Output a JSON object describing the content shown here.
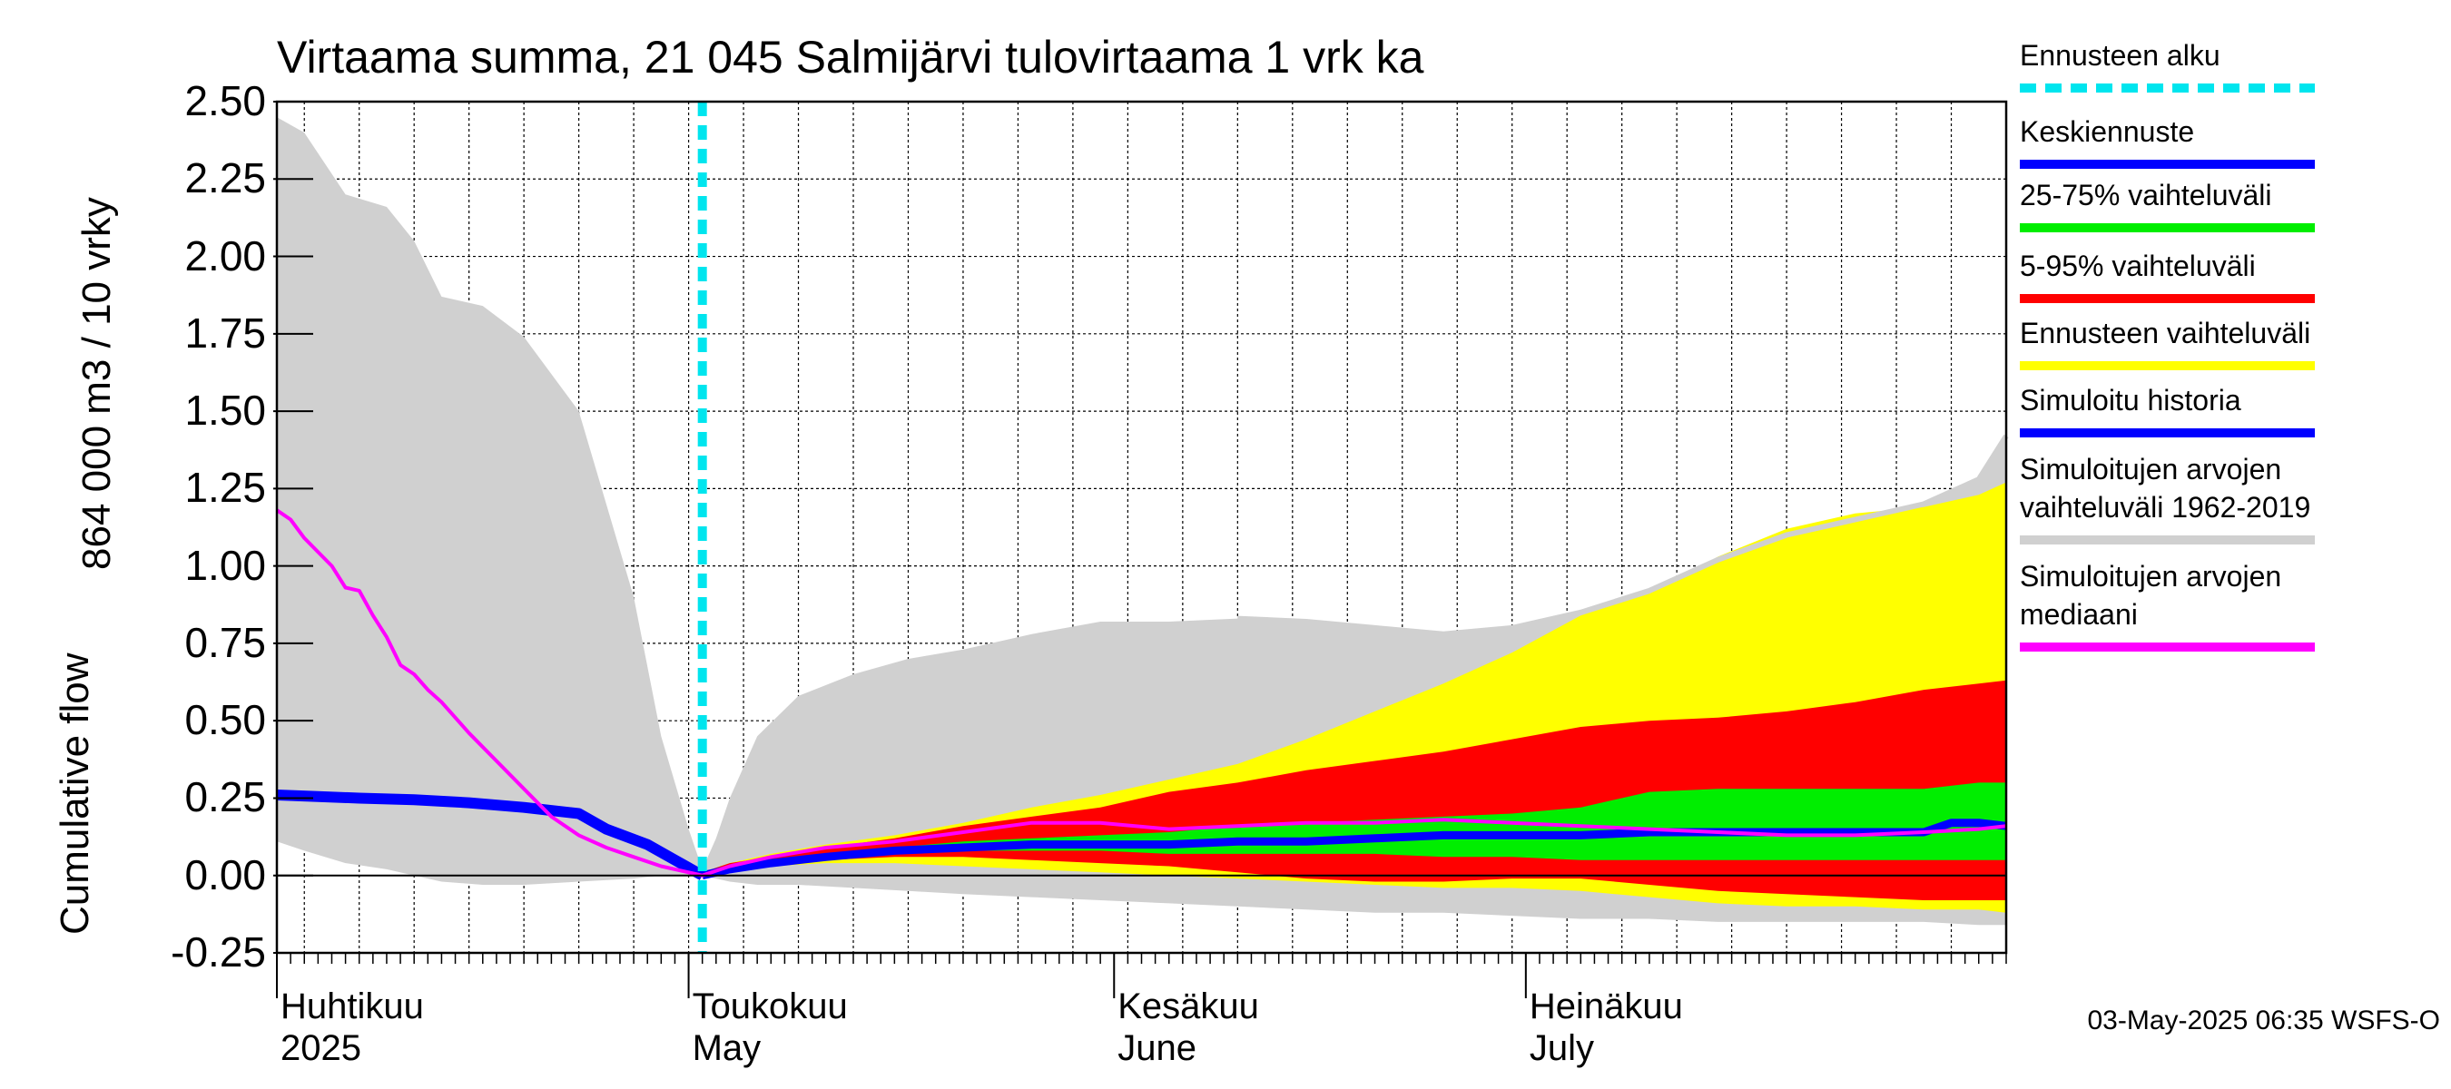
{
  "chart_data": {
    "type": "area",
    "title": "Virtaama summa, 21 045 Salmijärvi tulovirtaama 1 vrk ka",
    "ylabel_top": "864 000 m3 / 10 vrky",
    "ylabel_bottom": "Cumulative flow",
    "ylim": [
      -0.25,
      2.5
    ],
    "yticks": [
      "-0.25",
      "0.00",
      "0.25",
      "0.50",
      "0.75",
      "1.00",
      "1.25",
      "1.50",
      "1.75",
      "2.00",
      "2.25",
      "2.50"
    ],
    "ytick_values": [
      -0.25,
      0,
      0.25,
      0.5,
      0.75,
      1,
      1.25,
      1.5,
      1.75,
      2,
      2.25,
      2.5
    ],
    "x_range_days": [
      0,
      126
    ],
    "forecast_start_day": 31,
    "months": [
      {
        "fi": "Huhtikuu",
        "en": "2025",
        "day": 0
      },
      {
        "fi": "Toukokuu",
        "en": "May",
        "day": 30
      },
      {
        "fi": "Kesäkuu",
        "en": "June",
        "day": 61
      },
      {
        "fi": "Heinäkuu",
        "en": "July",
        "day": 91
      }
    ],
    "footer": "03-May-2025 06:35 WSFS-O",
    "legend": [
      {
        "label": "Ennusteen alku",
        "color": "#00e5ee",
        "style": "dashed"
      },
      {
        "label": "Keskiennuste",
        "color": "#0000ff",
        "style": "solid"
      },
      {
        "label": "25-75% vaihteluväli",
        "color": "#00ee00",
        "style": "solid"
      },
      {
        "label": "5-95% vaihteluväli",
        "color": "#ff0000",
        "style": "solid"
      },
      {
        "label": "Ennusteen vaihteluväli",
        "color": "#ffff00",
        "style": "solid"
      },
      {
        "label": "Simuloitu historia",
        "color": "#0000ff",
        "style": "solid"
      },
      {
        "label": "Simuloitujen arvojen\nvaihteluväli 1962-2019",
        "color": "#d0d0d0",
        "style": "solid"
      },
      {
        "label": "Simuloitujen arvojen\nmediaani",
        "color": "#ff00ff",
        "style": "solid"
      }
    ],
    "series": {
      "hist_range": {
        "day": [
          0,
          2,
          5,
          8,
          10,
          12,
          15,
          18,
          22,
          26,
          28,
          30,
          31,
          32,
          33,
          35,
          38,
          42,
          46,
          50,
          55,
          60,
          65,
          70,
          75,
          80,
          85,
          90,
          95,
          100,
          105,
          110,
          115,
          120,
          124,
          126
        ],
        "upper": [
          2.45,
          2.4,
          2.2,
          2.16,
          2.05,
          1.87,
          1.84,
          1.74,
          1.5,
          0.9,
          0.45,
          0.15,
          0.02,
          0.12,
          0.25,
          0.45,
          0.58,
          0.65,
          0.7,
          0.73,
          0.78,
          0.82,
          0.82,
          0.83,
          0.82,
          0.8,
          0.78,
          0.8,
          0.85,
          0.92,
          1.02,
          1.1,
          1.15,
          1.2,
          1.28,
          1.42
        ],
        "lower": [
          0.11,
          0.08,
          0.04,
          0.02,
          0.0,
          -0.02,
          -0.03,
          -0.03,
          -0.02,
          -0.01,
          0.0,
          0.0,
          0.0,
          -0.01,
          -0.02,
          -0.03,
          -0.03,
          -0.04,
          -0.05,
          -0.06,
          -0.07,
          -0.08,
          -0.09,
          -0.1,
          -0.11,
          -0.12,
          -0.12,
          -0.13,
          -0.14,
          -0.14,
          -0.15,
          -0.15,
          -0.15,
          -0.15,
          -0.16,
          -0.16
        ]
      },
      "forecast_range": {
        "day": [
          31,
          33,
          36,
          40,
          45,
          50,
          55,
          60,
          65,
          70,
          75,
          80,
          85,
          90,
          95,
          100,
          105,
          110,
          115,
          120,
          124,
          126
        ],
        "upper": [
          0.01,
          0.04,
          0.07,
          0.1,
          0.13,
          0.17,
          0.22,
          0.26,
          0.31,
          0.36,
          0.44,
          0.53,
          0.62,
          0.72,
          0.84,
          0.91,
          1.03,
          1.12,
          1.17,
          1.19,
          1.23,
          1.27
        ],
        "lower": [
          0.0,
          0.02,
          0.03,
          0.04,
          0.04,
          0.03,
          0.02,
          0.01,
          0.0,
          -0.01,
          -0.02,
          -0.03,
          -0.04,
          -0.04,
          -0.05,
          -0.07,
          -0.09,
          -0.1,
          -0.1,
          -0.11,
          -0.11,
          -0.12
        ]
      },
      "p5_95": {
        "day": [
          31,
          33,
          36,
          40,
          45,
          50,
          55,
          60,
          65,
          70,
          75,
          80,
          85,
          90,
          95,
          100,
          105,
          110,
          115,
          120,
          124,
          126
        ],
        "upper": [
          0.01,
          0.04,
          0.06,
          0.09,
          0.12,
          0.16,
          0.19,
          0.22,
          0.27,
          0.3,
          0.34,
          0.37,
          0.4,
          0.44,
          0.48,
          0.5,
          0.51,
          0.53,
          0.56,
          0.6,
          0.62,
          0.63
        ],
        "lower": [
          0.0,
          0.02,
          0.03,
          0.05,
          0.06,
          0.06,
          0.05,
          0.04,
          0.03,
          0.01,
          -0.01,
          -0.02,
          -0.02,
          -0.01,
          -0.01,
          -0.03,
          -0.05,
          -0.06,
          -0.07,
          -0.08,
          -0.08,
          -0.08
        ]
      },
      "p25_75": {
        "day": [
          31,
          33,
          36,
          40,
          45,
          50,
          55,
          60,
          65,
          70,
          75,
          80,
          85,
          90,
          95,
          100,
          105,
          110,
          115,
          120,
          124,
          126
        ],
        "upper": [
          0.01,
          0.03,
          0.05,
          0.07,
          0.09,
          0.11,
          0.12,
          0.13,
          0.14,
          0.16,
          0.17,
          0.18,
          0.19,
          0.2,
          0.22,
          0.27,
          0.28,
          0.28,
          0.28,
          0.28,
          0.3,
          0.3
        ],
        "lower": [
          0.0,
          0.02,
          0.04,
          0.06,
          0.07,
          0.08,
          0.08,
          0.08,
          0.07,
          0.07,
          0.07,
          0.07,
          0.06,
          0.06,
          0.05,
          0.05,
          0.05,
          0.05,
          0.05,
          0.05,
          0.05,
          0.05
        ]
      },
      "mean_forecast": {
        "day": [
          31,
          33,
          36,
          40,
          45,
          50,
          55,
          60,
          65,
          70,
          75,
          80,
          85,
          90,
          95,
          100,
          105,
          110,
          113,
          116,
          120,
          122,
          124,
          126
        ],
        "value": [
          0.0,
          0.02,
          0.04,
          0.06,
          0.08,
          0.09,
          0.1,
          0.1,
          0.1,
          0.11,
          0.11,
          0.12,
          0.13,
          0.13,
          0.13,
          0.14,
          0.14,
          0.14,
          0.14,
          0.14,
          0.14,
          0.17,
          0.17,
          0.16
        ]
      },
      "sim_history": {
        "day": [
          0,
          3,
          6,
          10,
          14,
          18,
          22,
          24,
          27,
          29,
          31
        ],
        "value": [
          0.26,
          0.255,
          0.25,
          0.245,
          0.235,
          0.22,
          0.2,
          0.15,
          0.1,
          0.05,
          0.0
        ]
      },
      "median": {
        "day": [
          0,
          1,
          2,
          4,
          5,
          6,
          7,
          8,
          9,
          10,
          11,
          12,
          14,
          16,
          18,
          20,
          22,
          24,
          26,
          28,
          30,
          31,
          33,
          36,
          40,
          45,
          50,
          55,
          60,
          65,
          70,
          75,
          80,
          85,
          90,
          95,
          100,
          105,
          110,
          115,
          120,
          124,
          126
        ],
        "value": [
          1.18,
          1.15,
          1.09,
          1.0,
          0.93,
          0.92,
          0.84,
          0.77,
          0.68,
          0.65,
          0.6,
          0.56,
          0.46,
          0.37,
          0.28,
          0.19,
          0.13,
          0.09,
          0.06,
          0.03,
          0.01,
          0.0,
          0.03,
          0.06,
          0.09,
          0.11,
          0.14,
          0.17,
          0.17,
          0.15,
          0.16,
          0.17,
          0.17,
          0.18,
          0.17,
          0.16,
          0.15,
          0.14,
          0.13,
          0.13,
          0.14,
          0.15,
          0.16
        ]
      }
    }
  }
}
